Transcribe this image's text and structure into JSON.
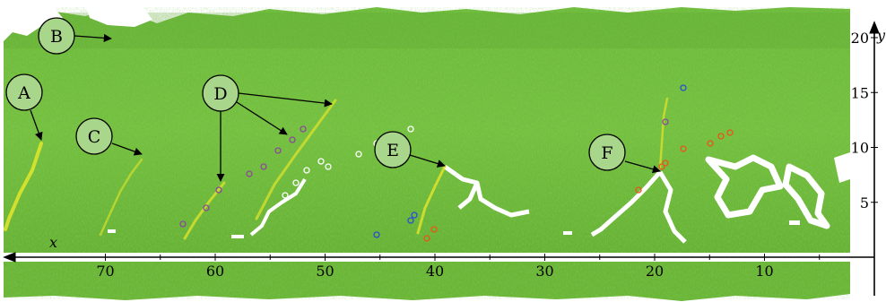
{
  "figure": {
    "labels": [
      "A",
      "B",
      "C",
      "D",
      "E",
      "F"
    ],
    "x_axis": {
      "name": "x",
      "ticks": [
        "70",
        "60",
        "50",
        "40",
        "30",
        "20",
        "10"
      ],
      "values": [
        70,
        60,
        50,
        40,
        30,
        20,
        10
      ],
      "direction": "right-to-left"
    },
    "y_axis": {
      "name": "y",
      "ticks": [
        "5",
        "10",
        "15",
        "20"
      ],
      "values": [
        5,
        10,
        15,
        20
      ]
    },
    "colors": {
      "surface": "#6fb83a",
      "surface_dark": "#4e9a2c",
      "crack": "#e6e61e",
      "marker_white": "#ffffff",
      "marker_orange": "#e8571a",
      "marker_purple": "#8a4a9a",
      "marker_blue": "#2a4fd0"
    }
  }
}
